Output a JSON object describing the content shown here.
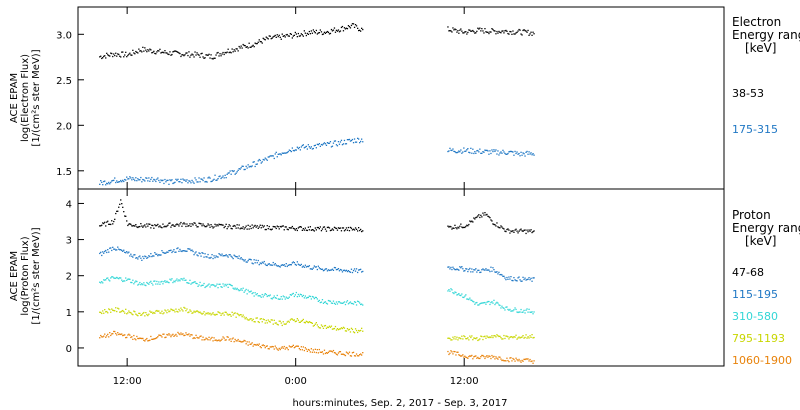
{
  "chart_data": [
    {
      "type": "scatter",
      "panel": "electron",
      "ylabel": [
        "ACE EPAM",
        "log(Electron Flux)",
        "[1/(cm²s ster MeV)]"
      ],
      "legend_title": [
        "Electron",
        "Energy range",
        "[keV]"
      ],
      "ylim": [
        1.3,
        3.3
      ],
      "y_ticks": [
        "1.5",
        "2.0",
        "2.5",
        "3.0"
      ],
      "y_tick_values": [
        1.5,
        2.0,
        2.5,
        3.0
      ],
      "series": [
        {
          "name": "38-53",
          "color": "#000000",
          "segments": [
            {
              "x": [
                0.0,
                1.0,
                2.0,
                3.0,
                4.0,
                5.0,
                6.0,
                7.0,
                8.0,
                9.0,
                10.0,
                11.0,
                12.0,
                13.0,
                14.0,
                15.0,
                16.0,
                17.0,
                18.0,
                18.8
              ],
              "y": [
                2.76,
                2.79,
                2.78,
                2.84,
                2.82,
                2.8,
                2.79,
                2.78,
                2.76,
                2.82,
                2.86,
                2.9,
                2.96,
                2.98,
                3.0,
                3.03,
                3.03,
                3.06,
                3.1,
                3.05
              ]
            },
            {
              "x": [
                24.8,
                26.0,
                27.0,
                28.0,
                29.0,
                30.0,
                31.0
              ],
              "y": [
                3.06,
                3.03,
                3.05,
                3.04,
                3.04,
                3.03,
                3.02
              ]
            }
          ]
        },
        {
          "name": "175-315",
          "color": "#1f77c4",
          "segments": [
            {
              "x": [
                0.0,
                1.0,
                2.0,
                3.0,
                4.0,
                5.0,
                6.0,
                7.0,
                8.0,
                9.0,
                10.0,
                11.0,
                12.0,
                13.0,
                14.0,
                15.0,
                16.0,
                17.0,
                18.0,
                18.8
              ],
              "y": [
                1.37,
                1.4,
                1.42,
                1.41,
                1.42,
                1.38,
                1.4,
                1.4,
                1.42,
                1.46,
                1.52,
                1.58,
                1.64,
                1.71,
                1.76,
                1.77,
                1.79,
                1.81,
                1.84,
                1.85
              ]
            },
            {
              "x": [
                24.8,
                26.0,
                27.0,
                28.0,
                29.0,
                30.0,
                31.0
              ],
              "y": [
                1.73,
                1.73,
                1.72,
                1.71,
                1.71,
                1.69,
                1.7
              ]
            }
          ]
        }
      ]
    },
    {
      "type": "scatter",
      "panel": "proton",
      "ylabel": [
        "ACE EPAM",
        "log(Proton Flux)",
        "[1/(cm²s ster MeV)]"
      ],
      "legend_title": [
        "Proton",
        "Energy range",
        "[keV]"
      ],
      "ylim": [
        -0.5,
        4.4
      ],
      "y_ticks": [
        "0",
        "1",
        "2",
        "3",
        "4"
      ],
      "y_tick_values": [
        0,
        1,
        2,
        3,
        4
      ],
      "series": [
        {
          "name": "47-68",
          "color": "#000000",
          "segments": [
            {
              "x": [
                0.0,
                1.0,
                1.5,
                2.0,
                3.0,
                4.0,
                5.0,
                6.0,
                7.0,
                8.0,
                9.0,
                10.0,
                11.0,
                12.0,
                13.0,
                14.0,
                15.0,
                16.0,
                17.0,
                18.0,
                18.8
              ],
              "y": [
                3.4,
                3.52,
                4.1,
                3.44,
                3.4,
                3.38,
                3.42,
                3.44,
                3.42,
                3.4,
                3.38,
                3.37,
                3.36,
                3.35,
                3.34,
                3.33,
                3.32,
                3.31,
                3.31,
                3.3,
                3.3
              ]
            },
            {
              "x": [
                24.8,
                26.0,
                27.0,
                27.5,
                28.0,
                29.0,
                30.0,
                31.0
              ],
              "y": [
                3.35,
                3.4,
                3.65,
                3.72,
                3.5,
                3.26,
                3.25,
                3.24
              ]
            }
          ]
        },
        {
          "name": "115-195",
          "color": "#1f77c4",
          "segments": [
            {
              "x": [
                0.0,
                1.0,
                2.0,
                3.0,
                4.0,
                5.0,
                6.0,
                7.0,
                8.0,
                9.0,
                10.0,
                11.0,
                12.0,
                13.0,
                14.0,
                15.0,
                16.0,
                17.0,
                18.0,
                18.8
              ],
              "y": [
                2.6,
                2.8,
                2.62,
                2.5,
                2.62,
                2.7,
                2.75,
                2.62,
                2.55,
                2.6,
                2.5,
                2.4,
                2.35,
                2.3,
                2.35,
                2.25,
                2.2,
                2.18,
                2.15,
                2.15
              ]
            },
            {
              "x": [
                24.8,
                26.0,
                27.0,
                28.0,
                29.0,
                30.0,
                31.0
              ],
              "y": [
                2.25,
                2.2,
                2.15,
                2.2,
                1.95,
                1.92,
                1.9
              ]
            }
          ]
        },
        {
          "name": "310-580",
          "color": "#33d6d6",
          "segments": [
            {
              "x": [
                0.0,
                1.0,
                2.0,
                3.0,
                4.0,
                5.0,
                6.0,
                7.0,
                8.0,
                9.0,
                10.0,
                11.0,
                12.0,
                13.0,
                14.0,
                15.0,
                16.0,
                17.0,
                18.0,
                18.8
              ],
              "y": [
                1.85,
                1.95,
                1.9,
                1.78,
                1.82,
                1.88,
                1.9,
                1.78,
                1.72,
                1.75,
                1.65,
                1.5,
                1.45,
                1.4,
                1.5,
                1.4,
                1.3,
                1.28,
                1.26,
                1.25
              ]
            },
            {
              "x": [
                24.8,
                26.0,
                27.0,
                28.0,
                29.0,
                30.0,
                31.0
              ],
              "y": [
                1.65,
                1.45,
                1.2,
                1.3,
                1.1,
                1.05,
                1.02
              ]
            }
          ]
        },
        {
          "name": "795-1193",
          "color": "#c8d600",
          "segments": [
            {
              "x": [
                0.0,
                1.0,
                2.0,
                3.0,
                4.0,
                5.0,
                6.0,
                7.0,
                8.0,
                9.0,
                10.0,
                11.0,
                12.0,
                13.0,
                14.0,
                15.0,
                16.0,
                17.0,
                18.0,
                18.8
              ],
              "y": [
                1.0,
                1.08,
                1.02,
                0.95,
                1.0,
                1.05,
                1.08,
                0.98,
                0.95,
                0.98,
                0.9,
                0.8,
                0.75,
                0.7,
                0.8,
                0.7,
                0.6,
                0.55,
                0.5,
                0.5
              ]
            },
            {
              "x": [
                24.8,
                26.0,
                27.0,
                28.0,
                29.0,
                30.0,
                31.0
              ],
              "y": [
                0.25,
                0.3,
                0.28,
                0.35,
                0.3,
                0.32,
                0.35
              ]
            }
          ]
        },
        {
          "name": "1060-1900",
          "color": "#e8820a",
          "segments": [
            {
              "x": [
                0.0,
                1.0,
                2.0,
                3.0,
                4.0,
                5.0,
                6.0,
                7.0,
                8.0,
                9.0,
                10.0,
                11.0,
                12.0,
                13.0,
                14.0,
                15.0,
                16.0,
                17.0,
                18.0,
                18.8
              ],
              "y": [
                0.3,
                0.42,
                0.35,
                0.25,
                0.3,
                0.38,
                0.4,
                0.3,
                0.25,
                0.28,
                0.2,
                0.1,
                0.05,
                0.0,
                0.05,
                -0.05,
                -0.1,
                -0.12,
                -0.15,
                -0.15
              ]
            },
            {
              "x": [
                24.8,
                26.0,
                27.0,
                28.0,
                29.0,
                30.0,
                31.0
              ],
              "y": [
                -0.1,
                -0.2,
                -0.25,
                -0.22,
                -0.3,
                -0.32,
                -0.35
              ]
            }
          ]
        }
      ]
    }
  ],
  "x_axis": {
    "label": "hours:minutes, Sep.  2, 2017 - Sep.  3, 2017",
    "xlim": [
      -1.5,
      44.5
    ],
    "ticks": [
      {
        "value": 2,
        "label": "12:00"
      },
      {
        "value": 14,
        "label": "0:00"
      },
      {
        "value": 26,
        "label": "12:00"
      }
    ]
  }
}
